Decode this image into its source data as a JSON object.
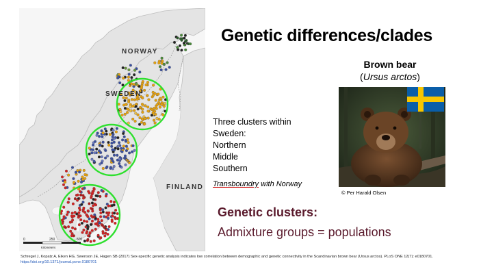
{
  "slide": {
    "title": "Genetic differences/clades",
    "species": {
      "common_name": "Brown bear",
      "scientific_name": "Ursus arctos",
      "photo_credit": "© Per Harald Olsen"
    },
    "clusters": {
      "intro_line1": "Three clusters within",
      "intro_line2": "Sweden:",
      "items": [
        "Northern",
        "Middle",
        "Southern"
      ]
    },
    "transboundary": {
      "underlined": "Transboundry",
      "rest": " with Norway"
    },
    "genetic_clusters": {
      "heading": "Genetic clusters:",
      "text": "Admixture groups = populations"
    },
    "citation": {
      "text": "Schregel J, Kopatz A, Eiken HG, Swenson JE, Hagen SB (2017) Sex-specific genetic analysis indicates low correlation between demographic and genetic connectivity in the Scandinavian brown bear (Ursus arctos). PLoS ONE 12(7): e0180701.",
      "link": "https://doi.org/10.1371/journal.pone.0180701"
    }
  },
  "map": {
    "labels": {
      "norway": "NORWAY",
      "sweden": "SWEDEN",
      "finland": "FINLAND"
    },
    "scale": {
      "ticks": [
        "0",
        "250",
        "500"
      ],
      "unit": "Kilometers"
    },
    "colors": {
      "land": "#e4e4e4",
      "water": "#f6f6f6",
      "northern_cluster": "#e8a20c",
      "middle_cluster": "#3a4fa0",
      "southern_cluster": "#d42020",
      "cluster_ring": "#2ee02e"
    }
  },
  "flag": {
    "name": "sweden-flag",
    "blue": "#0a5ea8",
    "yellow": "#f7c600"
  }
}
